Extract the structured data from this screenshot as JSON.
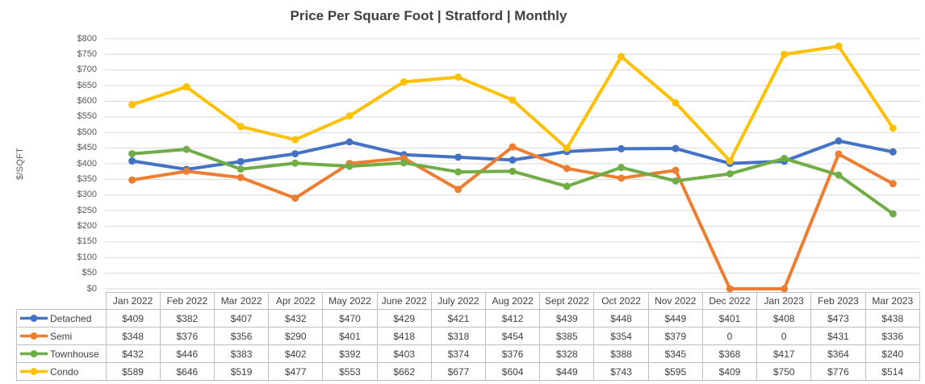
{
  "chart_data": {
    "type": "line",
    "title": "Price Per Square Foot | Stratford | Monthly",
    "ylabel": "$/SQFT",
    "xlabel": "",
    "ylim": [
      0,
      800
    ],
    "ytick_step": 50,
    "ytick_prefix": "$",
    "grid": "horizontal-only",
    "legend_position": "data-table-left-column",
    "categories": [
      "Jan 2022",
      "Feb 2022",
      "Mar 2022",
      "Apr 2022",
      "May 2022",
      "June 2022",
      "July 2022",
      "Aug 2022",
      "Sept 2022",
      "Oct 2022",
      "Nov 2022",
      "Dec 2022",
      "Jan 2023",
      "Feb 2023",
      "Mar 2023"
    ],
    "series": [
      {
        "name": "Detached",
        "color": "#4472C4",
        "values": [
          409,
          382,
          407,
          432,
          470,
          429,
          421,
          412,
          439,
          448,
          449,
          401,
          408,
          473,
          438
        ],
        "displays": [
          "$409",
          "$382",
          "$407",
          "$432",
          "$470",
          "$429",
          "$421",
          "$412",
          "$439",
          "$448",
          "$449",
          "$401",
          "$408",
          "$473",
          "$438"
        ]
      },
      {
        "name": "Semi",
        "color": "#ED7D31",
        "values": [
          348,
          376,
          356,
          290,
          401,
          418,
          318,
          454,
          385,
          354,
          379,
          0,
          0,
          431,
          336
        ],
        "displays": [
          "$348",
          "$376",
          "$356",
          "$290",
          "$401",
          "$418",
          "$318",
          "$454",
          "$385",
          "$354",
          "$379",
          "0",
          "0",
          "$431",
          "$336"
        ]
      },
      {
        "name": "Townhouse",
        "color": "#70AD47",
        "values": [
          432,
          446,
          383,
          402,
          392,
          403,
          374,
          376,
          328,
          388,
          345,
          368,
          417,
          364,
          240
        ],
        "displays": [
          "$432",
          "$446",
          "$383",
          "$402",
          "$392",
          "$403",
          "$374",
          "$376",
          "$328",
          "$388",
          "$345",
          "$368",
          "$417",
          "$364",
          "$240"
        ]
      },
      {
        "name": "Condo",
        "color": "#FFC000",
        "values": [
          589,
          646,
          519,
          477,
          553,
          662,
          677,
          604,
          449,
          743,
          595,
          409,
          750,
          776,
          514
        ],
        "displays": [
          "$589",
          "$646",
          "$519",
          "$477",
          "$553",
          "$662",
          "$677",
          "$604",
          "$449",
          "$743",
          "$595",
          "$409",
          "$750",
          "$776",
          "$514"
        ]
      }
    ]
  },
  "palette": {
    "gridline": "#D9D9D9",
    "table_border": "#BFBFBF",
    "title_text": "#404040",
    "axis_text": "#595959",
    "table_text": "#404040",
    "background": "#FFFFFF"
  }
}
